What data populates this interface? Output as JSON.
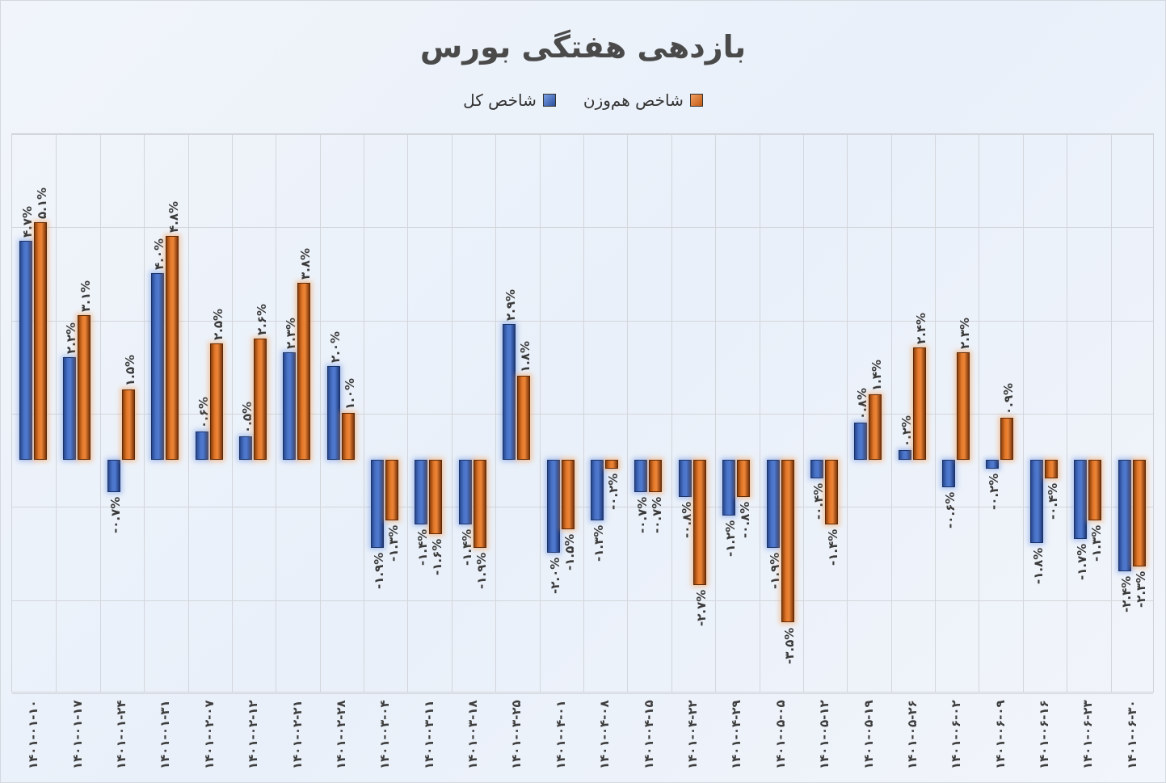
{
  "title": "بازدهی هفتگی بورس",
  "legend": [
    {
      "label": "شاخص کل",
      "color": "#4472c4"
    },
    {
      "label": "شاخص هم‌وزن",
      "color": "#ed7d31"
    }
  ],
  "chart_data": {
    "type": "bar",
    "title": "بازدهی هفتگی بورس",
    "xlabel": "",
    "ylabel": "",
    "ylim": [
      -5,
      7
    ],
    "gridlines_at": [
      -5,
      -3,
      -1,
      1,
      3,
      5,
      7
    ],
    "legend_position": "top",
    "categories": [
      "1401-01-10",
      "1401-01-17",
      "1401-01-24",
      "1401-01-31",
      "1401-02-07",
      "1401-02-12",
      "1401-02-21",
      "1401-02-28",
      "1401-03-04",
      "1401-03-11",
      "1401-03-18",
      "1401-03-25",
      "1401-04-01",
      "1401-04-08",
      "1401-04-15",
      "1401-04-22",
      "1401-04-29",
      "1401-05-05",
      "1401-05-12",
      "1401-05-19",
      "1401-05-26",
      "1401-06-02",
      "1401-06-09",
      "1401-06-16",
      "1401-06-23",
      "1401-06-30"
    ],
    "categories_display": [
      "۱۴۰۱-۰۱-۱۰",
      "۱۴۰۱-۰۱-۱۷",
      "۱۴۰۱-۰۱-۲۴",
      "۱۴۰۱-۰۱-۳۱",
      "۱۴۰۱-۰۲-۰۷",
      "۱۴۰۱-۰۲-۱۲",
      "۱۴۰۱-۰۲-۲۱",
      "۱۴۰۱-۰۲-۲۸",
      "۱۴۰۱-۰۳-۰۴",
      "۱۴۰۱-۰۳-۱۱",
      "۱۴۰۱-۰۳-۱۸",
      "۱۴۰۱-۰۳-۲۵",
      "۱۴۰۱-۰۴-۰۱",
      "۱۴۰۱-۰۴-۰۸",
      "۱۴۰۱-۰۴-۱۵",
      "۱۴۰۱-۰۴-۲۲",
      "۱۴۰۱-۰۴-۲۹",
      "۱۴۰۱-۰۵-۰۵",
      "۱۴۰۱-۰۵-۱۲",
      "۱۴۰۱-۰۵-۱۹",
      "۱۴۰۱-۰۵-۲۶",
      "۱۴۰۱-۰۶-۰۲",
      "۱۴۰۱-۰۶-۰۹",
      "۱۴۰۱-۰۶-۱۶",
      "۱۴۰۱-۰۶-۲۳",
      "۱۴۰۱-۰۶-۳۰"
    ],
    "series": [
      {
        "name": "شاخص کل",
        "color": "#4472c4",
        "values": [
          4.7,
          2.2,
          -0.7,
          4.0,
          0.6,
          0.5,
          2.3,
          2.0,
          -1.9,
          -1.4,
          -1.4,
          2.9,
          -2.0,
          -1.3,
          -0.7,
          -0.8,
          -1.2,
          -1.9,
          -0.4,
          0.8,
          0.2,
          -0.6,
          -0.2,
          -1.8,
          -1.7,
          -2.4
        ],
        "labels": [
          "۴.۷%",
          "۲.۲%",
          "-۰.۷%",
          "۴.۰%",
          "۰.۶%",
          "۰.۵%",
          "۲.۳%",
          "۲.۰%",
          "-۱.۹%",
          "-۱.۴%",
          "-۱.۴%",
          "۲.۹%",
          "-۲.۰%",
          "-۱.۳%",
          "-۰.۷%",
          "-۰.۸%",
          "-۱.۲%",
          "-۱.۹%",
          "-۰.۴%",
          "۰.۸%",
          "۰.۲%",
          "-۰.۶%",
          "-۰.۲%",
          "-۱.۸%",
          "-۱.۷%",
          "-۲.۴%"
        ]
      },
      {
        "name": "شاخص هم‌وزن",
        "color": "#ed7d31",
        "values": [
          5.1,
          3.1,
          1.5,
          4.8,
          2.5,
          2.6,
          3.8,
          1.0,
          -1.3,
          -1.6,
          -1.9,
          1.8,
          -1.5,
          -0.2,
          -0.7,
          -2.7,
          -0.8,
          -3.5,
          -1.4,
          1.4,
          2.4,
          2.3,
          0.9,
          -0.4,
          -1.3,
          -2.3
        ],
        "labels": [
          "۵.۱%",
          "۳.۱%",
          "۱.۵%",
          "۴.۸%",
          "۲.۵%",
          "۲.۶%",
          "۳.۸%",
          "۱.۰%",
          "-۱.۳%",
          "-۱.۶%",
          "-۱.۹%",
          "۱.۸%",
          "-۱.۵%",
          "-۰.۲%",
          "-۰.۷%",
          "-۲.۷%",
          "-۰.۸%",
          "-۳.۵%",
          "-۱.۴%",
          "۱.۴%",
          "۲.۴%",
          "۲.۳%",
          "۰.۹%",
          "-۰.۴%",
          "-۱.۳%",
          "-۲.۳%"
        ]
      }
    ]
  }
}
